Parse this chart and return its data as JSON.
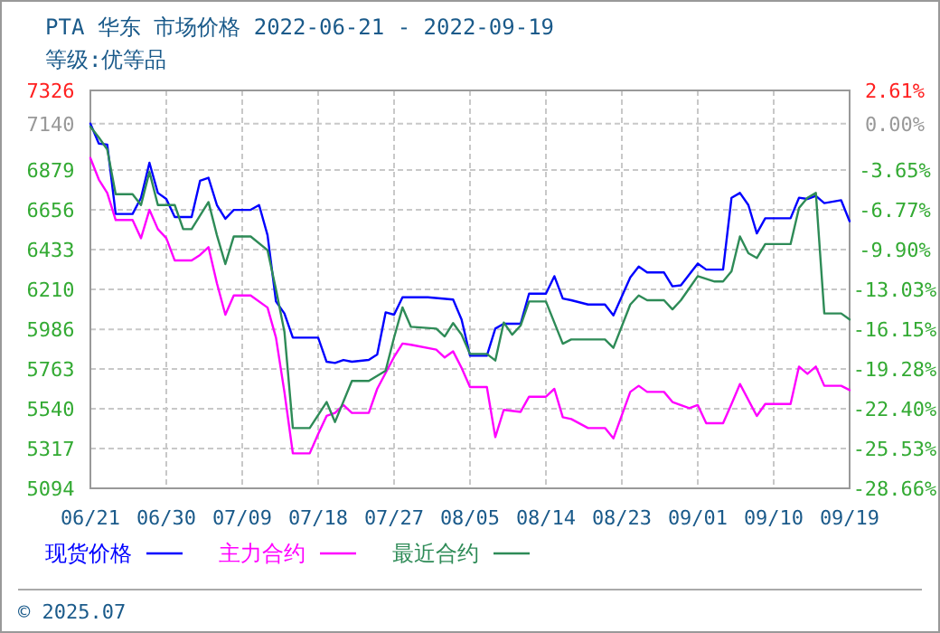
{
  "chart_data": {
    "type": "line",
    "title": "PTA 华东 市场价格 2022-06-21 - 2022-09-19",
    "subtitle": "等级:优等品",
    "xlim": [
      "2022-06-21",
      "2022-09-19"
    ],
    "xticks": [
      {
        "value": "2022-06-21",
        "label": "06/21"
      },
      {
        "value": "2022-06-30",
        "label": "06/30"
      },
      {
        "value": "2022-07-09",
        "label": "07/09"
      },
      {
        "value": "2022-07-18",
        "label": "07/18"
      },
      {
        "value": "2022-07-27",
        "label": "07/27"
      },
      {
        "value": "2022-08-05",
        "label": "08/05"
      },
      {
        "value": "2022-08-14",
        "label": "08/14"
      },
      {
        "value": "2022-08-23",
        "label": "08/23"
      },
      {
        "value": "2022-09-01",
        "label": "09/01"
      },
      {
        "value": "2022-09-10",
        "label": "09/10"
      },
      {
        "value": "2022-09-19",
        "label": "09/19"
      }
    ],
    "ylim": [
      5094,
      7326
    ],
    "yticks": [
      7326,
      7140,
      6879,
      6656,
      6433,
      6210,
      5986,
      5763,
      5540,
      5317,
      5094
    ],
    "y2lim": [
      -28.66,
      2.61
    ],
    "y2ticks": [
      {
        "value": 2.61,
        "label": "2.61%"
      },
      {
        "value": 0,
        "label": "0.00%"
      },
      {
        "value": -3.65,
        "label": "-3.65%"
      },
      {
        "value": -6.77,
        "label": "-6.77%"
      },
      {
        "value": -9.9,
        "label": "-9.90%"
      },
      {
        "value": -13.03,
        "label": "-13.03%"
      },
      {
        "value": -16.15,
        "label": "-16.15%"
      },
      {
        "value": -19.28,
        "label": "-19.28%"
      },
      {
        "value": -22.4,
        "label": "-22.40%"
      },
      {
        "value": -25.53,
        "label": "-25.53%"
      },
      {
        "value": -28.66,
        "label": "-28.66%"
      }
    ],
    "grid": true,
    "legend": "bottom",
    "marker": "none",
    "line_style": "solid",
    "annotations": [
      "© 2025.07"
    ],
    "series": [
      {
        "name": "现货价格",
        "color": "#0000ff",
        "x": [
          "2022-06-21",
          "2022-06-22",
          "2022-06-23",
          "2022-06-24",
          "2022-06-26",
          "2022-06-27",
          "2022-06-28",
          "2022-06-29",
          "2022-06-30",
          "2022-07-01",
          "2022-07-03",
          "2022-07-04",
          "2022-07-05",
          "2022-07-06",
          "2022-07-07",
          "2022-07-08",
          "2022-07-10",
          "2022-07-11",
          "2022-07-12",
          "2022-07-13",
          "2022-07-14",
          "2022-07-15",
          "2022-07-18",
          "2022-07-19",
          "2022-07-20",
          "2022-07-21",
          "2022-07-22",
          "2022-07-24",
          "2022-07-25",
          "2022-07-26",
          "2022-07-27",
          "2022-07-28",
          "2022-07-31",
          "2022-08-03",
          "2022-08-04",
          "2022-08-05",
          "2022-08-07",
          "2022-08-08",
          "2022-08-09",
          "2022-08-11",
          "2022-08-12",
          "2022-08-14",
          "2022-08-15",
          "2022-08-16",
          "2022-08-17",
          "2022-08-19",
          "2022-08-21",
          "2022-08-22",
          "2022-08-24",
          "2022-08-25",
          "2022-08-26",
          "2022-08-28",
          "2022-08-29",
          "2022-08-30",
          "2022-09-01",
          "2022-09-02",
          "2022-09-04",
          "2022-09-05",
          "2022-09-06",
          "2022-09-07",
          "2022-09-08",
          "2022-09-09",
          "2022-09-12",
          "2022-09-13",
          "2022-09-14",
          "2022-09-15",
          "2022-09-16",
          "2022-09-18",
          "2022-09-19"
        ],
        "values": [
          7140,
          7028,
          7022,
          6633,
          6633,
          6724,
          6920,
          6751,
          6717,
          6616,
          6616,
          6819,
          6836,
          6683,
          6606,
          6656,
          6656,
          6683,
          6514,
          6142,
          6075,
          5939,
          5939,
          5804,
          5797,
          5814,
          5804,
          5814,
          5845,
          6081,
          6068,
          6166,
          6166,
          6153,
          6041,
          5838,
          5838,
          5990,
          6017,
          6017,
          6186,
          6186,
          6284,
          6159,
          6149,
          6125,
          6125,
          6064,
          6277,
          6338,
          6305,
          6305,
          6227,
          6233,
          6355,
          6321,
          6321,
          6724,
          6751,
          6683,
          6524,
          6609,
          6609,
          6724,
          6717,
          6734,
          6694,
          6710,
          6592
        ]
      },
      {
        "name": "主力合约",
        "color": "#ff00ff",
        "x": [
          "2022-06-21",
          "2022-06-22",
          "2022-06-23",
          "2022-06-24",
          "2022-06-26",
          "2022-06-27",
          "2022-06-28",
          "2022-06-29",
          "2022-06-30",
          "2022-07-01",
          "2022-07-03",
          "2022-07-04",
          "2022-07-05",
          "2022-07-06",
          "2022-07-07",
          "2022-07-08",
          "2022-07-10",
          "2022-07-12",
          "2022-07-13",
          "2022-07-14",
          "2022-07-15",
          "2022-07-17",
          "2022-07-18",
          "2022-07-19",
          "2022-07-20",
          "2022-07-21",
          "2022-07-22",
          "2022-07-24",
          "2022-07-25",
          "2022-07-27",
          "2022-07-28",
          "2022-07-29",
          "2022-08-01",
          "2022-08-02",
          "2022-08-03",
          "2022-08-04",
          "2022-08-05",
          "2022-08-07",
          "2022-08-08",
          "2022-08-09",
          "2022-08-11",
          "2022-08-12",
          "2022-08-14",
          "2022-08-15",
          "2022-08-16",
          "2022-08-17",
          "2022-08-19",
          "2022-08-21",
          "2022-08-22",
          "2022-08-24",
          "2022-08-25",
          "2022-08-26",
          "2022-08-28",
          "2022-08-29",
          "2022-08-31",
          "2022-09-01",
          "2022-09-02",
          "2022-09-04",
          "2022-09-05",
          "2022-09-06",
          "2022-09-08",
          "2022-09-09",
          "2022-09-12",
          "2022-09-13",
          "2022-09-14",
          "2022-09-15",
          "2022-09-16",
          "2022-09-18",
          "2022-09-19"
        ],
        "values": [
          6947,
          6826,
          6751,
          6599,
          6599,
          6497,
          6656,
          6548,
          6497,
          6372,
          6372,
          6403,
          6447,
          6244,
          6068,
          6176,
          6176,
          6108,
          5939,
          5635,
          5290,
          5290,
          5398,
          5500,
          5517,
          5561,
          5517,
          5517,
          5652,
          5831,
          5906,
          5899,
          5872,
          5828,
          5862,
          5770,
          5662,
          5662,
          5381,
          5534,
          5523,
          5608,
          5608,
          5652,
          5493,
          5483,
          5432,
          5432,
          5374,
          5635,
          5669,
          5635,
          5635,
          5578,
          5544,
          5561,
          5459,
          5459,
          5567,
          5679,
          5500,
          5567,
          5567,
          5777,
          5736,
          5777,
          5669,
          5669,
          5645
        ]
      },
      {
        "name": "最近合约",
        "color": "#2e8b57",
        "x": [
          "2022-06-21",
          "2022-06-22",
          "2022-06-23",
          "2022-06-24",
          "2022-06-26",
          "2022-06-27",
          "2022-06-28",
          "2022-06-29",
          "2022-07-01",
          "2022-07-02",
          "2022-07-03",
          "2022-07-05",
          "2022-07-06",
          "2022-07-07",
          "2022-07-08",
          "2022-07-10",
          "2022-07-12",
          "2022-07-13",
          "2022-07-14",
          "2022-07-15",
          "2022-07-17",
          "2022-07-19",
          "2022-07-20",
          "2022-07-22",
          "2022-07-24",
          "2022-07-26",
          "2022-07-27",
          "2022-07-28",
          "2022-07-29",
          "2022-08-01",
          "2022-08-02",
          "2022-08-03",
          "2022-08-04",
          "2022-08-05",
          "2022-08-07",
          "2022-08-08",
          "2022-08-09",
          "2022-08-10",
          "2022-08-11",
          "2022-08-12",
          "2022-08-14",
          "2022-08-16",
          "2022-08-17",
          "2022-08-21",
          "2022-08-22",
          "2022-08-24",
          "2022-08-25",
          "2022-08-26",
          "2022-08-28",
          "2022-08-29",
          "2022-08-30",
          "2022-09-01",
          "2022-09-03",
          "2022-09-04",
          "2022-09-05",
          "2022-09-06",
          "2022-09-07",
          "2022-09-08",
          "2022-09-09",
          "2022-09-12",
          "2022-09-13",
          "2022-09-14",
          "2022-09-15",
          "2022-09-16",
          "2022-09-18",
          "2022-09-19"
        ],
        "values": [
          7123,
          7062,
          6995,
          6744,
          6744,
          6683,
          6869,
          6683,
          6683,
          6548,
          6548,
          6700,
          6514,
          6352,
          6507,
          6507,
          6430,
          6210,
          5973,
          5432,
          5432,
          5578,
          5466,
          5696,
          5696,
          5754,
          5940,
          6109,
          6000,
          5990,
          5946,
          6021,
          5956,
          5848,
          5848,
          5811,
          6024,
          5956,
          6007,
          6142,
          6142,
          5905,
          5929,
          5929,
          5882,
          6125,
          6176,
          6149,
          6149,
          6098,
          6149,
          6284,
          6254,
          6254,
          6311,
          6507,
          6413,
          6386,
          6464,
          6464,
          6666,
          6724,
          6751,
          6075,
          6075,
          6041
        ]
      }
    ]
  }
}
